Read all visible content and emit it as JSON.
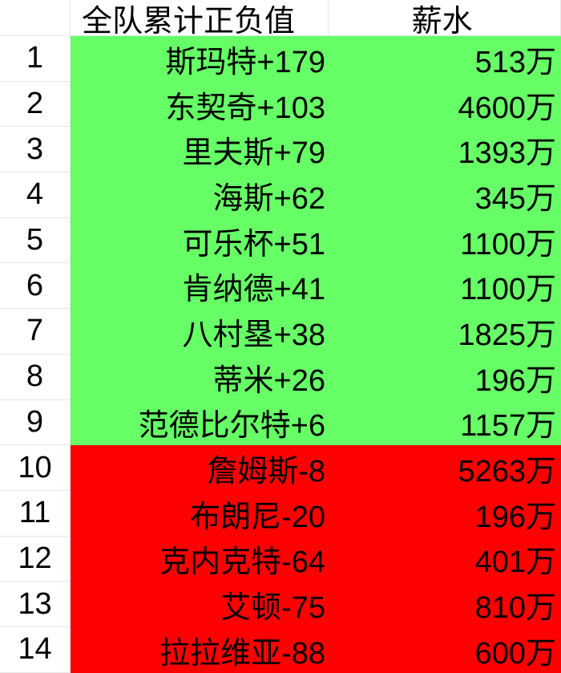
{
  "header": {
    "col_a": "全队累计正负值",
    "col_b": "薪水"
  },
  "colors": {
    "positive": "#66ff66",
    "negative": "#ff0000"
  },
  "rows": [
    {
      "index": "1",
      "value": "斯玛特+179",
      "salary": "513万",
      "status": "positive"
    },
    {
      "index": "2",
      "value": "东契奇+103",
      "salary": "4600万",
      "status": "positive"
    },
    {
      "index": "3",
      "value": "里夫斯+79",
      "salary": "1393万",
      "status": "positive"
    },
    {
      "index": "4",
      "value": "海斯+62",
      "salary": "345万",
      "status": "positive"
    },
    {
      "index": "5",
      "value": "可乐杯+51",
      "salary": "1100万",
      "status": "positive"
    },
    {
      "index": "6",
      "value": "肯纳德+41",
      "salary": "1100万",
      "status": "positive"
    },
    {
      "index": "7",
      "value": "八村塁+38",
      "salary": "1825万",
      "status": "positive"
    },
    {
      "index": "8",
      "value": "蒂米+26",
      "salary": "196万",
      "status": "positive"
    },
    {
      "index": "9",
      "value": "范德比尔特+6",
      "salary": "1157万",
      "status": "positive"
    },
    {
      "index": "10",
      "value": "詹姆斯-8",
      "salary": "5263万",
      "status": "negative"
    },
    {
      "index": "11",
      "value": "布朗尼-20",
      "salary": "196万",
      "status": "negative"
    },
    {
      "index": "12",
      "value": "克内克特-64",
      "salary": "401万",
      "status": "negative"
    },
    {
      "index": "13",
      "value": "艾顿-75",
      "salary": "810万",
      "status": "negative"
    },
    {
      "index": "14",
      "value": "拉拉维亚-88",
      "salary": "600万",
      "status": "negative"
    }
  ]
}
